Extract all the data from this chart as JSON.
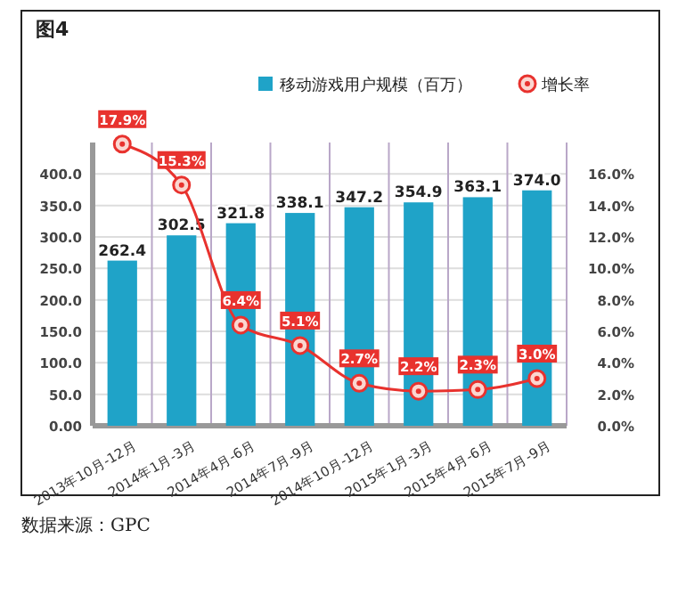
{
  "chart_data": {
    "type": "bar",
    "title": "图4",
    "categories": [
      "2013年10月-12月",
      "2014年1月-3月",
      "2014年4月-6月",
      "2014年7月-9月",
      "2014年10月-12月",
      "2015年1月-3月",
      "2015年4月-6月",
      "2015年7月-9月"
    ],
    "series": [
      {
        "name": "移动游戏用户规模（百万）",
        "color": "#1fa3c8",
        "values": [
          262.4,
          302.5,
          321.8,
          338.1,
          347.2,
          354.9,
          363.1,
          374.0
        ],
        "value_labels": [
          "262.4",
          "302.5",
          "321.8",
          "338.1",
          "347.2",
          "354.9",
          "363.1",
          "374.0"
        ]
      },
      {
        "name": "增长率",
        "type": "line",
        "axis": "y2",
        "color": "#e8322e",
        "marker": "circle",
        "values": [
          17.9,
          15.3,
          6.4,
          5.1,
          2.7,
          2.2,
          2.3,
          3.0
        ],
        "value_labels": [
          "17.9%",
          "15.3%",
          "6.4%",
          "5.1%",
          "2.7%",
          "2.2%",
          "2.3%",
          "3.0%"
        ]
      }
    ],
    "ylim": [
      0,
      450
    ],
    "yticks": [
      {
        "value": 0,
        "label": "0.00"
      },
      {
        "value": 50,
        "label": "50.0"
      },
      {
        "value": 100,
        "label": "100.0"
      },
      {
        "value": 150,
        "label": "150.0"
      },
      {
        "value": 200,
        "label": "200.0"
      },
      {
        "value": 250,
        "label": "250.0"
      },
      {
        "value": 300,
        "label": "300.0"
      },
      {
        "value": 350,
        "label": "350.0"
      },
      {
        "value": 400,
        "label": "400.0"
      }
    ],
    "y2lim": [
      0,
      18
    ],
    "y2ticks": [
      {
        "value": 0,
        "label": "0.0%"
      },
      {
        "value": 2,
        "label": "2.0%"
      },
      {
        "value": 4,
        "label": "4.0%"
      },
      {
        "value": 6,
        "label": "6.0%"
      },
      {
        "value": 8,
        "label": "8.0%"
      },
      {
        "value": 10,
        "label": "10.0%"
      },
      {
        "value": 12,
        "label": "12.0%"
      },
      {
        "value": 14,
        "label": "14.0%"
      },
      {
        "value": 16,
        "label": "16.0%"
      }
    ],
    "grid": true,
    "legend": "top right",
    "annotations": [
      "数据来源：GPC"
    ]
  }
}
